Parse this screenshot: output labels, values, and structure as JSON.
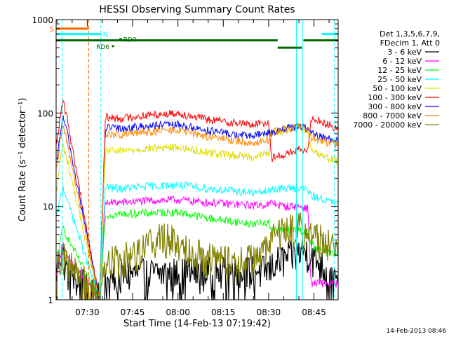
{
  "chart_data": {
    "type": "line",
    "title": "HESSI Observing Summary Count Rates",
    "xlabel": "Start Time (14-Feb-13 07:19:42)",
    "ylabel": "Count Rate (s⁻¹ detector⁻¹)",
    "yscale": "log",
    "ylim": [
      1,
      1000
    ],
    "xlim_minutes": [
      439.7,
      533.0
    ],
    "x_ticks": [
      {
        "min": 450,
        "label": "07:30"
      },
      {
        "min": 465,
        "label": "07:45"
      },
      {
        "min": 480,
        "label": "08:00"
      },
      {
        "min": 495,
        "label": "08:15"
      },
      {
        "min": 510,
        "label": "08:30"
      },
      {
        "min": 525,
        "label": "08:45"
      }
    ],
    "y_ticks": [
      {
        "value": 1,
        "label": "1"
      },
      {
        "value": 10,
        "label": "10"
      },
      {
        "value": 100,
        "label": "100"
      },
      {
        "value": 1000,
        "label": "1000"
      }
    ],
    "legend": {
      "position": "right",
      "header": [
        "Det 1,3,5,6,7,9,",
        "FDecim 1, Att 0"
      ]
    },
    "series": [
      {
        "name": "3 - 6 keV",
        "color": "#000000",
        "x": [
          440,
          441,
          442,
          443,
          454,
          456,
          461,
          510,
          512,
          519,
          522,
          528,
          531,
          533
        ],
        "y": [
          2,
          3,
          3,
          2,
          1,
          1.4,
          1.8,
          2.0,
          2.4,
          3.0,
          3.3,
          2.2,
          1.5,
          1.5
        ]
      },
      {
        "name": "6 - 12 keV",
        "color": "#ff00ff",
        "x": [
          440,
          441,
          442,
          443,
          454,
          456,
          461,
          470,
          480,
          490,
          500,
          505,
          510,
          511,
          515,
          520,
          523,
          524,
          526,
          528,
          531,
          533
        ],
        "y": [
          2,
          3,
          4,
          3,
          1,
          11.0,
          11.0,
          11.5,
          11.8,
          11.0,
          10.5,
          10.3,
          10.5,
          11.0,
          10.0,
          10.0,
          9.5,
          1.5,
          1.5,
          1.5,
          1.5,
          1.5
        ]
      },
      {
        "name": "12 - 25 keV",
        "color": "#00ff00",
        "x": [
          440,
          441,
          442,
          443,
          454,
          456,
          461,
          470,
          480,
          490,
          500,
          505,
          510,
          511,
          515,
          520,
          523,
          524,
          526,
          528,
          531,
          533
        ],
        "y": [
          3,
          4,
          6,
          5,
          1,
          8.0,
          8.3,
          8.5,
          8.7,
          7.5,
          6.8,
          6.5,
          6.8,
          5.5,
          5.6,
          5.6,
          5.3,
          4.0,
          3.5,
          3.3,
          3.2,
          3.2
        ]
      },
      {
        "name": "25 - 50 keV",
        "color": "#00ffff",
        "x": [
          440,
          441,
          442,
          443,
          454,
          456,
          461,
          470,
          480,
          490,
          500,
          505,
          510,
          511,
          515,
          520,
          523,
          524,
          526,
          528,
          531,
          533
        ],
        "y": [
          8,
          12,
          16,
          13,
          1,
          16.0,
          15.5,
          16.5,
          17.0,
          15.5,
          14.5,
          14.0,
          14.5,
          15.5,
          15.5,
          16.0,
          15.0,
          13.0,
          12.5,
          12.0,
          11.0,
          10.5
        ]
      },
      {
        "name": "50 - 100 keV",
        "color": "#dddd00",
        "x": [
          440,
          441,
          442,
          443,
          454,
          456,
          461,
          470,
          480,
          490,
          500,
          505,
          510,
          511,
          515,
          520,
          523,
          524,
          526,
          528,
          531,
          533
        ],
        "y": [
          15,
          30,
          45,
          35,
          1,
          40.0,
          39.0,
          42.0,
          43.0,
          38.0,
          35.0,
          34.0,
          37.0,
          60.0,
          65.0,
          70.0,
          65.0,
          40.0,
          38.0,
          35.0,
          32.0,
          30.0
        ]
      },
      {
        "name": "100 - 300 keV",
        "color": "#ff0000",
        "x": [
          440,
          441,
          442,
          443,
          454,
          456,
          461,
          470,
          480,
          490,
          500,
          505,
          510,
          511,
          515,
          520,
          523,
          524,
          526,
          528,
          531,
          533
        ],
        "y": [
          50,
          90,
          130,
          100,
          1,
          90.0,
          88.0,
          95.0,
          100.0,
          85.0,
          78.0,
          75.0,
          80.0,
          33.0,
          36.0,
          40.0,
          38.0,
          90.0,
          85.0,
          80.0,
          72.0,
          68.0
        ]
      },
      {
        "name": "300 - 800 keV",
        "color": "#0000ff",
        "x": [
          440,
          441,
          442,
          443,
          454,
          456,
          461,
          470,
          480,
          490,
          500,
          505,
          510,
          511,
          515,
          520,
          523,
          524,
          526,
          528,
          531,
          533
        ],
        "y": [
          30,
          60,
          90,
          70,
          1,
          70.0,
          68.0,
          73.0,
          75.0,
          65.0,
          58.0,
          57.0,
          62.0,
          62.0,
          68.0,
          72.0,
          68.0,
          60.0,
          57.0,
          55.0,
          52.0,
          50.0
        ]
      },
      {
        "name": "800 - 7000 keV",
        "color": "#ff8800",
        "x": [
          440,
          441,
          442,
          443,
          454,
          456,
          461,
          470,
          480,
          490,
          500,
          505,
          510,
          511,
          515,
          520,
          523,
          524,
          526,
          528,
          531,
          533
        ],
        "y": [
          25,
          50,
          70,
          55,
          1,
          60.0,
          58.0,
          63.0,
          66.0,
          56.0,
          50.0,
          48.0,
          52.0,
          62.0,
          67.0,
          71.0,
          67.0,
          55.0,
          52.0,
          50.0,
          47.0,
          45.0
        ]
      },
      {
        "name": "7000 - 20000 keV",
        "color": "#808000",
        "x": [
          440,
          441,
          442,
          443,
          454,
          456,
          461,
          466,
          470,
          475,
          480,
          485,
          490,
          500,
          505,
          510,
          512,
          515,
          520,
          523,
          526,
          529,
          531,
          533
        ],
        "y": [
          2,
          3,
          3,
          2.5,
          1,
          2.5,
          2.6,
          3.2,
          4.0,
          4.6,
          4.0,
          3.2,
          2.8,
          2.4,
          2.8,
          3.5,
          4.8,
          5.5,
          6.0,
          5.0,
          4.5,
          4.2,
          4.0,
          3.8
        ]
      }
    ],
    "state_bars": [
      {
        "label": "S",
        "color": "#ff6600",
        "y": 800,
        "x_start": 439.7,
        "x_end": 450.5,
        "label_side": "left"
      },
      {
        "label": "N",
        "color": "#00ffff",
        "y": 700,
        "x_start": 439.7,
        "x_end": 454.5,
        "label_side": "right"
      },
      {
        "label": "",
        "color": "#00ffff",
        "y": 700,
        "x_start": 527.5,
        "x_end": 533.0
      },
      {
        "label": "",
        "color": "#006600",
        "y": 600,
        "x_start": 439.7,
        "x_end": 513.0
      },
      {
        "label": "",
        "color": "#006600",
        "y": 500,
        "x_start": 513.0,
        "x_end": 521.0
      },
      {
        "label": "",
        "color": "#006600",
        "y": 600,
        "x_start": 521.5,
        "x_end": 533.0
      }
    ],
    "markers": [
      {
        "label": "RD6",
        "x": 458.5,
        "y": 520,
        "color": "#006600"
      },
      {
        "label": "RD0",
        "x": 461.0,
        "y": 620,
        "color": "#006600"
      }
    ],
    "vertical_lines": [
      {
        "x": 441.8,
        "color": "#00ffff",
        "style": "dashed"
      },
      {
        "x": 450.5,
        "color": "#ff6600",
        "style": "dashed"
      },
      {
        "x": 454.5,
        "color": "#00ffff",
        "style": "dashed"
      },
      {
        "x": 519.2,
        "color": "#00ffff",
        "style": "solid"
      },
      {
        "x": 521.2,
        "color": "#00ffff",
        "style": "solid"
      },
      {
        "x": 531.8,
        "color": "#00ffff",
        "style": "dashed"
      }
    ]
  },
  "footer_timestamp": "14-Feb-2013 08:46"
}
